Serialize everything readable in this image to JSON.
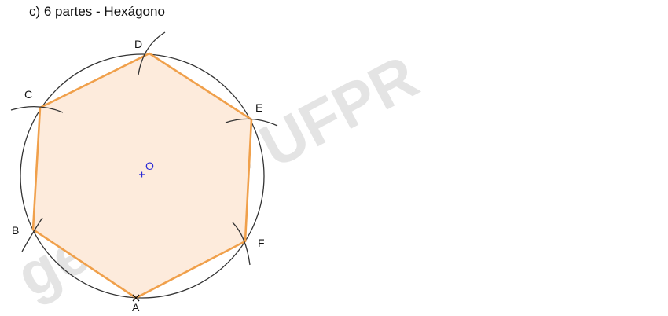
{
  "title": "c) 6 partes - Hexágono",
  "watermark": "geegraf - UFPR",
  "colors": {
    "hexagon_stroke": "#f0a04b",
    "hexagon_fill": "#fdebdc",
    "circle_stroke": "#333333",
    "arc_stroke": "#333333",
    "center": "#2b2bd6",
    "label": "#111111"
  },
  "points": {
    "A": "A",
    "B": "B",
    "C": "C",
    "D": "D",
    "E": "E",
    "F": "F",
    "O": "O"
  }
}
